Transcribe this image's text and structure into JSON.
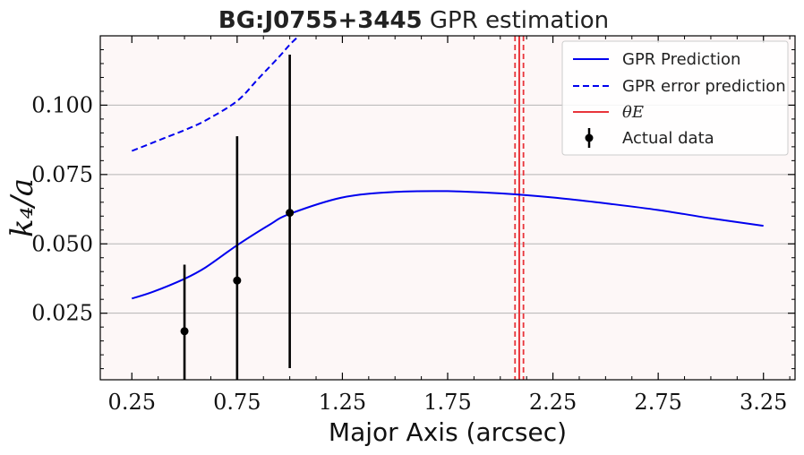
{
  "chart_data": {
    "type": "line",
    "title_bold": "BG:J0755+3445",
    "title_rest": "GPR estimation",
    "xlabel": "Major Axis (arcsec)",
    "ylabel": "k₄/a",
    "xlim": [
      0.1,
      3.4
    ],
    "ylim": [
      0.001,
      0.125
    ],
    "x_ticks": [
      0.25,
      0.75,
      1.25,
      1.75,
      2.25,
      2.75,
      3.25
    ],
    "x_tick_labels": [
      "0.25",
      "0.75",
      "1.25",
      "1.75",
      "2.25",
      "2.75",
      "3.25"
    ],
    "y_ticks": [
      0.025,
      0.05,
      0.075,
      0.1
    ],
    "y_tick_labels": [
      "0.025",
      "0.050",
      "0.075",
      "0.100"
    ],
    "grid": "horizontal",
    "legend_position": "top-right",
    "series": [
      {
        "name": "GPR Prediction",
        "style": "solid",
        "color": "#0000ee",
        "x": [
          0.25,
          0.35,
          0.5,
          0.6,
          0.75,
          0.9,
          1.0,
          1.25,
          1.5,
          1.75,
          2.0,
          2.25,
          2.5,
          2.75,
          3.0,
          3.25
        ],
        "y": [
          0.0303,
          0.0327,
          0.0374,
          0.0415,
          0.0495,
          0.0567,
          0.0608,
          0.0667,
          0.0687,
          0.069,
          0.0682,
          0.0667,
          0.0646,
          0.0622,
          0.0592,
          0.0565
        ]
      },
      {
        "name": "GPR error prediction",
        "style": "dashed",
        "color": "#0000ee",
        "x": [
          0.25,
          0.4,
          0.5,
          0.6,
          0.75,
          0.85,
          0.95,
          1.0,
          1.05
        ],
        "y": [
          0.0835,
          0.088,
          0.091,
          0.0945,
          0.1015,
          0.1095,
          0.1175,
          0.1218,
          0.1255
        ]
      }
    ],
    "theta_E": {
      "name": "θE",
      "color": "#e8343a",
      "center": 2.09,
      "lower": 2.07,
      "upper": 2.11
    },
    "actual_data": {
      "name": "Actual data",
      "color": "#000000",
      "x": [
        0.5,
        0.75,
        1.0
      ],
      "y": [
        0.0185,
        0.0368,
        0.0612
      ],
      "err_low": [
        0.0185,
        0.0368,
        0.056
      ],
      "err_high": [
        0.024,
        0.052,
        0.057
      ]
    },
    "colors": {
      "plot_background": "#fdf7f7",
      "grid": "#b5b5b5"
    }
  }
}
